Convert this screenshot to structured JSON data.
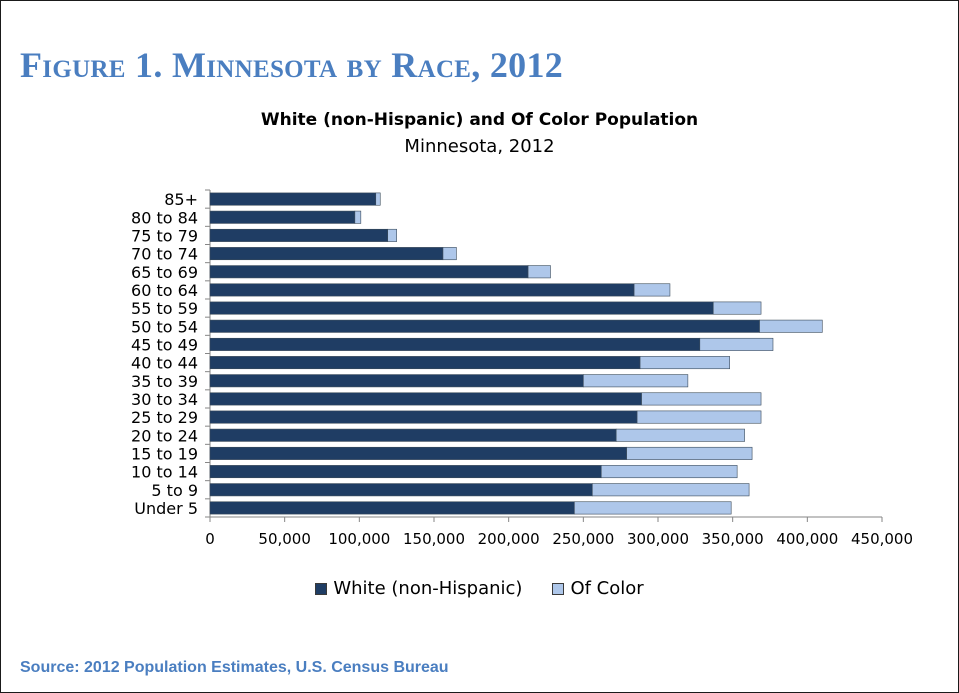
{
  "figure_title": "Figure 1. Minnesota by Race, 2012",
  "source": "Source: 2012 Population Estimates, U.S. Census Bureau",
  "colors": {
    "white": "#1f3d64",
    "of_color": "#aec7ea",
    "heading": "#4a7ec0"
  },
  "chart_data": {
    "type": "bar",
    "orientation": "horizontal",
    "stacked": true,
    "title": "White (non-Hispanic) and Of Color Population",
    "subtitle": "Minnesota, 2012",
    "categories": [
      "85+",
      "80 to 84",
      "75 to 79",
      "70 to 74",
      "65 to 69",
      "60 to 64",
      "55 to 59",
      "50 to 54",
      "45 to 49",
      "40 to 44",
      "35 to 39",
      "30 to 34",
      "25 to 29",
      "20 to 24",
      "15 to 19",
      "10 to 14",
      "5 to 9",
      "Under 5"
    ],
    "series": [
      {
        "name": "White (non-Hispanic)",
        "values": [
          111000,
          97000,
          119000,
          156000,
          213000,
          284000,
          337000,
          368000,
          328000,
          288000,
          250000,
          289000,
          286000,
          272000,
          279000,
          262000,
          256000,
          244000
        ]
      },
      {
        "name": "Of Color",
        "values": [
          3000,
          4000,
          6000,
          9000,
          15000,
          24000,
          32000,
          42000,
          49000,
          60000,
          70000,
          80000,
          83000,
          86000,
          84000,
          91000,
          105000,
          105000
        ]
      }
    ],
    "xlim": [
      0,
      450000
    ],
    "xticks": [
      "0",
      "50,000",
      "100,000",
      "150,000",
      "200,000",
      "250,000",
      "300,000",
      "350,000",
      "400,000",
      "450,000"
    ],
    "grid": false,
    "legend_position": "bottom"
  }
}
